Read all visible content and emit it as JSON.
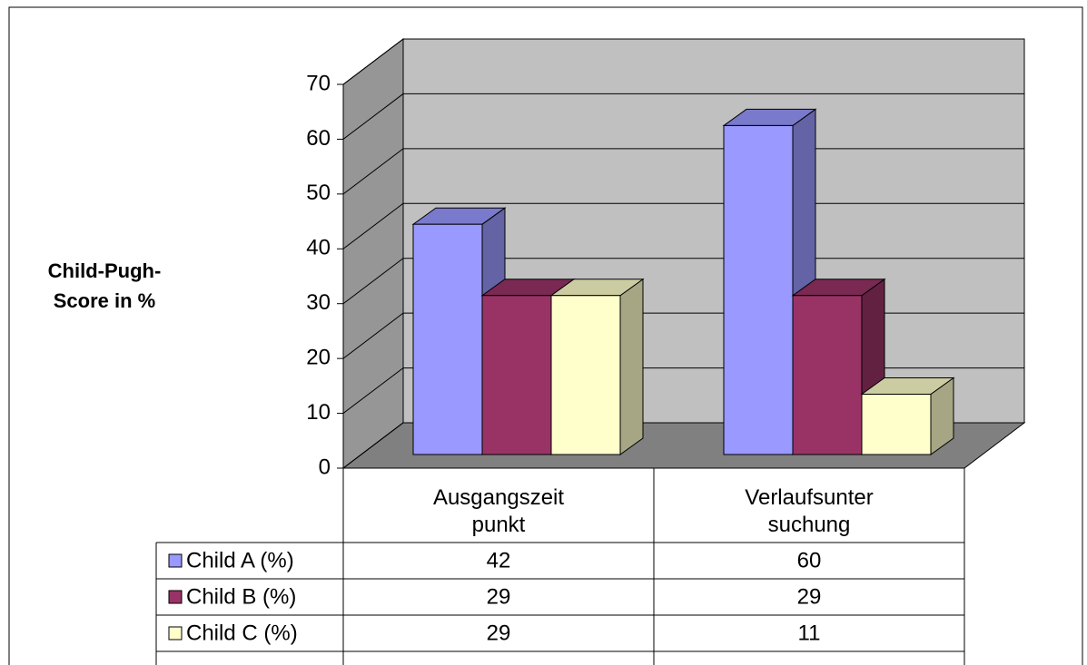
{
  "chart_data": {
    "type": "bar3d",
    "y_label": "Child-Pugh-\nScore in %",
    "categories": [
      "Ausgangszeit\npunkt",
      "Verlaufsunter\nsuchung"
    ],
    "series": [
      {
        "name": "Child A (%)",
        "color": "#9999ff",
        "values": [
          42,
          60
        ]
      },
      {
        "name": "Child B (%)",
        "color": "#993366",
        "values": [
          29,
          29
        ]
      },
      {
        "name": "Child C (%)",
        "color": "#ffffcc",
        "values": [
          29,
          11
        ]
      }
    ],
    "ylim": [
      0,
      70
    ],
    "yticks": [
      0,
      10,
      20,
      30,
      40,
      50,
      60,
      70
    ],
    "grid": true
  }
}
